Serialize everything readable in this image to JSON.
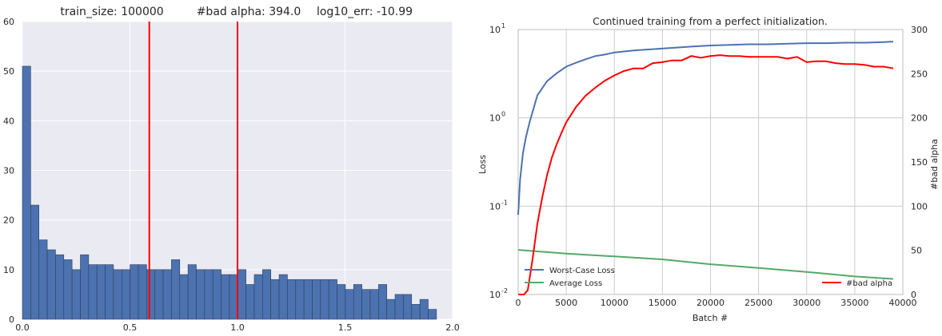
{
  "chart_data": [
    {
      "type": "bar",
      "title_parts": [
        "train_size: 100000",
        "#bad alpha: 394.0",
        "log10_err: -10.99"
      ],
      "xlim": [
        0,
        2.0
      ],
      "ylim": [
        0,
        60
      ],
      "xticks": [
        "0.0",
        "0.5",
        "1.0",
        "1.5",
        "2.0"
      ],
      "yticks": [
        "0",
        "10",
        "20",
        "30",
        "40",
        "50",
        "60"
      ],
      "bin_start": 0.0,
      "bin_width": 0.0385,
      "values": [
        51,
        23,
        16,
        14,
        13,
        12,
        10,
        13,
        11,
        11,
        11,
        10,
        10,
        11,
        11,
        10,
        10,
        10,
        12,
        9,
        11,
        10,
        10,
        10,
        9,
        9,
        10,
        7,
        9,
        10,
        8,
        9,
        8,
        8,
        8,
        8,
        8,
        8,
        7,
        6,
        7,
        6,
        6,
        7,
        4,
        5,
        5,
        3,
        4,
        2
      ],
      "vlines": [
        0.59,
        1.0
      ],
      "colors": {
        "bar": "#4c72b0",
        "vline": "#ff0000",
        "bg": "#eaeaf2"
      }
    },
    {
      "type": "line",
      "title": "Continued training from a perfect initialization.",
      "xlabel": "Batch #",
      "ylabel": "Loss",
      "ylabel_right": "#bad alpha",
      "xlim": [
        0,
        40000
      ],
      "ylim": [
        0.01,
        10
      ],
      "yscale": "log",
      "ylim_right": [
        0,
        300
      ],
      "xticks": [
        "0",
        "5000",
        "10000",
        "15000",
        "20000",
        "25000",
        "30000",
        "35000",
        "40000"
      ],
      "yticks": [
        "10",
        "10",
        "10",
        "10"
      ],
      "yticks_exp": [
        "-2",
        "-1",
        "0",
        "1"
      ],
      "yticks_right": [
        "0",
        "50",
        "100",
        "150",
        "200",
        "250",
        "300"
      ],
      "series": [
        {
          "name": "Worst-Case Loss",
          "axis": "left",
          "color": "#4c72b0",
          "x": [
            0,
            200,
            500,
            800,
            1200,
            2000,
            3000,
            4000,
            5000,
            6000,
            7000,
            8000,
            9000,
            10000,
            12000,
            14000,
            16000,
            18000,
            20000,
            22000,
            24000,
            26000,
            28000,
            30000,
            32000,
            34000,
            36000,
            38000,
            39000
          ],
          "y": [
            0.08,
            0.2,
            0.4,
            0.6,
            0.9,
            1.8,
            2.6,
            3.2,
            3.8,
            4.2,
            4.6,
            5.0,
            5.2,
            5.5,
            5.8,
            6.0,
            6.2,
            6.4,
            6.6,
            6.7,
            6.8,
            6.8,
            6.9,
            7.0,
            7.0,
            7.1,
            7.1,
            7.2,
            7.3
          ]
        },
        {
          "name": "Average Loss",
          "axis": "left",
          "color": "#55a868",
          "x": [
            0,
            5000,
            10000,
            15000,
            20000,
            25000,
            30000,
            35000,
            39000
          ],
          "y": [
            0.032,
            0.029,
            0.027,
            0.025,
            0.022,
            0.02,
            0.018,
            0.016,
            0.015
          ]
        },
        {
          "name": "#bad alpha",
          "axis": "right",
          "color": "#ff0000",
          "x": [
            0,
            600,
            1000,
            1500,
            2000,
            2500,
            3000,
            3500,
            4000,
            4500,
            5000,
            6000,
            7000,
            8000,
            9000,
            10000,
            11000,
            12000,
            13000,
            14000,
            15000,
            16000,
            17000,
            18000,
            19000,
            20000,
            21000,
            22000,
            23000,
            24000,
            25000,
            26000,
            27000,
            28000,
            29000,
            30000,
            31000,
            32000,
            33000,
            34000,
            35000,
            36000,
            37000,
            38000,
            39000
          ],
          "y": [
            0,
            0,
            5,
            40,
            80,
            110,
            135,
            155,
            170,
            183,
            195,
            212,
            225,
            234,
            242,
            248,
            253,
            256,
            256,
            262,
            263,
            265,
            265,
            270,
            268,
            270,
            271,
            270,
            270,
            269,
            269,
            269,
            269,
            267,
            269,
            263,
            264,
            264,
            262,
            261,
            261,
            260,
            258,
            258,
            256
          ]
        }
      ],
      "legend": [
        "lower left",
        "lower right"
      ]
    }
  ]
}
